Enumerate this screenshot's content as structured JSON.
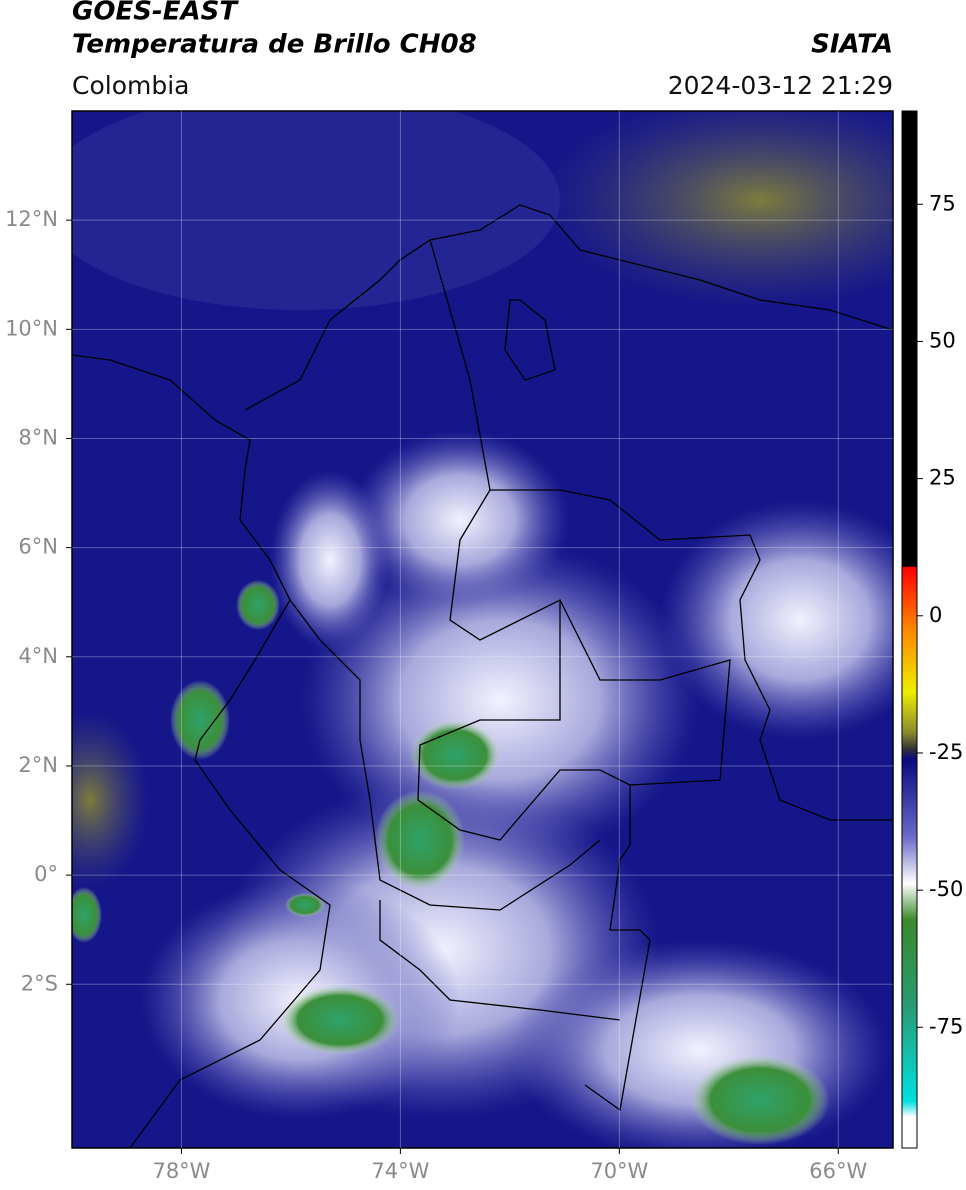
{
  "header": {
    "title": "GOES-EAST",
    "subtitle": "Temperatura de Brillo CH08",
    "source": "SIATA",
    "region": "Colombia",
    "datetime": "2024-03-12 21:29"
  },
  "map": {
    "xlim": [
      -80,
      -65
    ],
    "ylim": [
      -5,
      14
    ],
    "xticks": [
      {
        "value": -78,
        "label": "78°W"
      },
      {
        "value": -74,
        "label": "74°W"
      },
      {
        "value": -70,
        "label": "70°W"
      },
      {
        "value": -66,
        "label": "66°W"
      }
    ],
    "yticks": [
      {
        "value": 12,
        "label": "12°N"
      },
      {
        "value": 10,
        "label": "10°N"
      },
      {
        "value": 8,
        "label": "8°N"
      },
      {
        "value": 6,
        "label": "6°N"
      },
      {
        "value": 4,
        "label": "4°N"
      },
      {
        "value": 2,
        "label": "2°N"
      },
      {
        "value": 0,
        "label": "0°"
      },
      {
        "value": -2,
        "label": "2°S"
      }
    ],
    "grid": true
  },
  "colorbar": {
    "lim": [
      -97,
      92
    ],
    "ticks": [
      75,
      50,
      25,
      0,
      -25,
      -50,
      -75
    ]
  }
}
